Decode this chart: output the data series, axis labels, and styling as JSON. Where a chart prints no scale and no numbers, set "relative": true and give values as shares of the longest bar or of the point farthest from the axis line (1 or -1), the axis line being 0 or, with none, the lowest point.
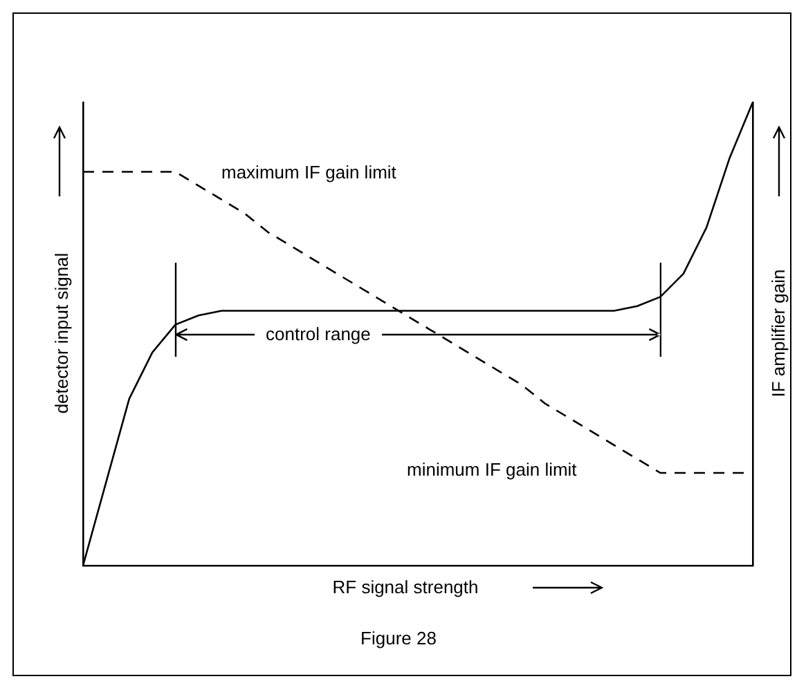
{
  "chart_data": {
    "type": "line",
    "relative": true,
    "xlabel": "RF signal strength",
    "ylabel": "detector input signal",
    "y2label": "IF amplifier gain",
    "annotations": [
      "maximum IF gain limit",
      "control range",
      "minimum IF gain limit",
      "Figure 28"
    ],
    "categories": [
      null,
      null,
      null,
      null,
      null,
      null,
      null,
      null,
      null,
      null,
      null,
      null,
      null,
      null,
      null,
      null,
      null,
      null,
      null,
      null,
      null,
      null,
      null,
      null,
      null,
      null,
      null,
      null,
      null,
      null
    ],
    "series": [
      {
        "color": "#000000",
        "line_style": "solid",
        "values": [
          0,
          0.18,
          0.36,
          0.46,
          0.52,
          0.54,
          0.55,
          0.55,
          0.55,
          0.55,
          0.55,
          0.55,
          0.55,
          0.55,
          0.55,
          0.55,
          0.55,
          0.55,
          0.55,
          0.55,
          0.55,
          0.55,
          0.55,
          0.55,
          0.56,
          0.58,
          0.63,
          0.73,
          0.88,
          1
        ]
      },
      {
        "color": "#000000",
        "line_style": "dashed",
        "values": [
          0.85,
          0.85,
          0.85,
          0.85,
          0.85,
          0.82,
          0.79,
          0.76,
          0.72,
          0.69,
          0.66,
          0.63,
          0.6,
          0.57,
          0.54,
          0.51,
          0.48,
          0.45,
          0.42,
          0.39,
          0.35,
          0.32,
          0.29,
          0.26,
          0.23,
          0.2,
          0.2,
          0.2,
          0.2,
          0.2
        ]
      }
    ],
    "grid": false,
    "legend": false,
    "marker": "none"
  }
}
